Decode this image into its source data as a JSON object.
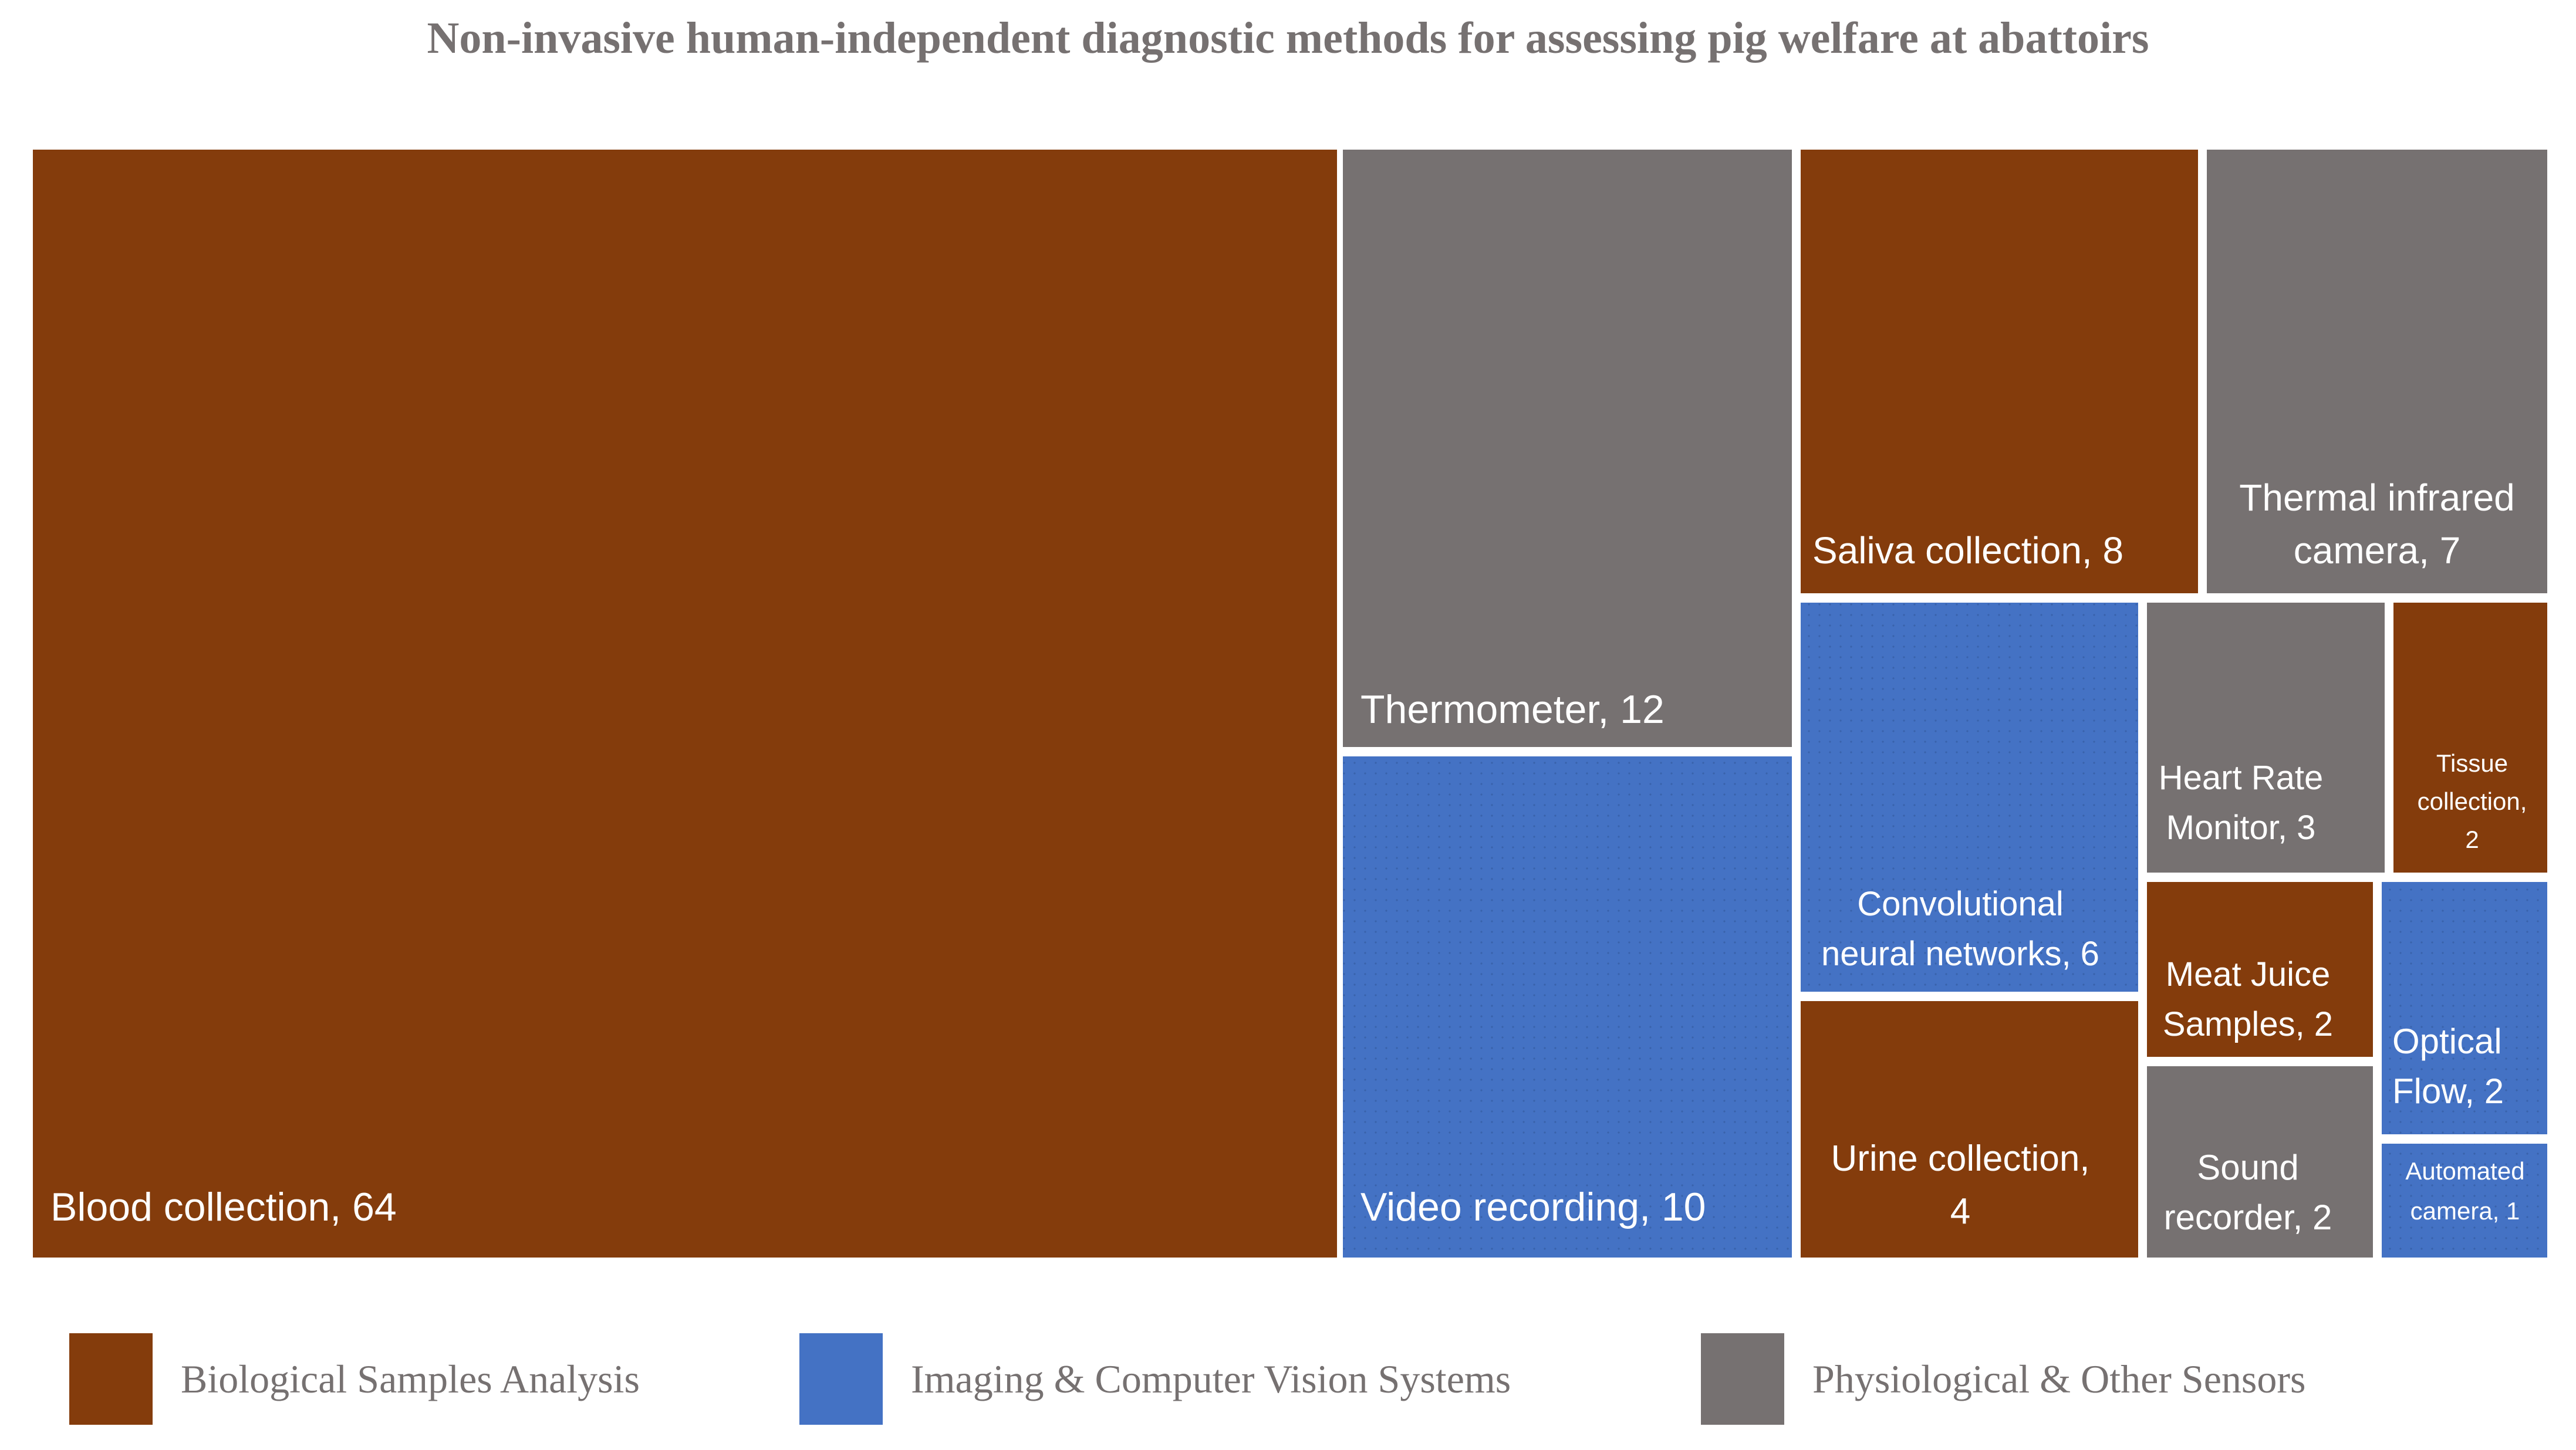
{
  "chart_data": {
    "type": "treemap",
    "title": "Non-invasive human-independent diagnostic methods for assessing pig welfare at abattoirs",
    "categories": [
      {
        "name": "Biological Samples Analysis",
        "color": "#843C0C"
      },
      {
        "name": "Imaging & Computer Vision Systems",
        "color": "#4472C4"
      },
      {
        "name": "Physiological & Other Sensors",
        "color": "#767171"
      }
    ],
    "items": [
      {
        "label": "Blood collection, 64",
        "method": "Blood collection",
        "value": 64,
        "category": "Biological Samples Analysis"
      },
      {
        "label": "Thermometer, 12",
        "method": "Thermometer",
        "value": 12,
        "category": "Physiological & Other Sensors"
      },
      {
        "label": "Video recording, 10",
        "method": "Video recording",
        "value": 10,
        "category": "Imaging & Computer Vision Systems"
      },
      {
        "label": "Saliva collection, 8",
        "method": "Saliva collection",
        "value": 8,
        "category": "Biological Samples Analysis"
      },
      {
        "label": "Thermal infrared camera, 7",
        "method": "Thermal infrared camera",
        "value": 7,
        "category": "Physiological & Other Sensors"
      },
      {
        "label": "Convolutional neural networks, 6",
        "method": "Convolutional neural networks",
        "value": 6,
        "category": "Imaging & Computer Vision Systems"
      },
      {
        "label": "Urine collection, 4",
        "method": "Urine collection",
        "value": 4,
        "category": "Biological Samples Analysis"
      },
      {
        "label": "Heart Rate Monitor, 3",
        "method": "Heart Rate Monitor",
        "value": 3,
        "category": "Physiological & Other Sensors"
      },
      {
        "label": "Tissue collection, 2",
        "method": "Tissue collection",
        "value": 2,
        "category": "Biological Samples Analysis"
      },
      {
        "label": "Meat Juice Samples, 2",
        "method": "Meat Juice Samples",
        "value": 2,
        "category": "Biological Samples Analysis"
      },
      {
        "label": "Optical Flow, 2",
        "method": "Optical Flow",
        "value": 2,
        "category": "Imaging & Computer Vision Systems"
      },
      {
        "label": "Sound recorder, 2",
        "method": "Sound recorder",
        "value": 2,
        "category": "Physiological & Other Sensors"
      },
      {
        "label": "Automated camera, 1",
        "method": "Automated camera",
        "value": 1,
        "category": "Imaging & Computer Vision Systems"
      }
    ],
    "legend": "bottom"
  }
}
